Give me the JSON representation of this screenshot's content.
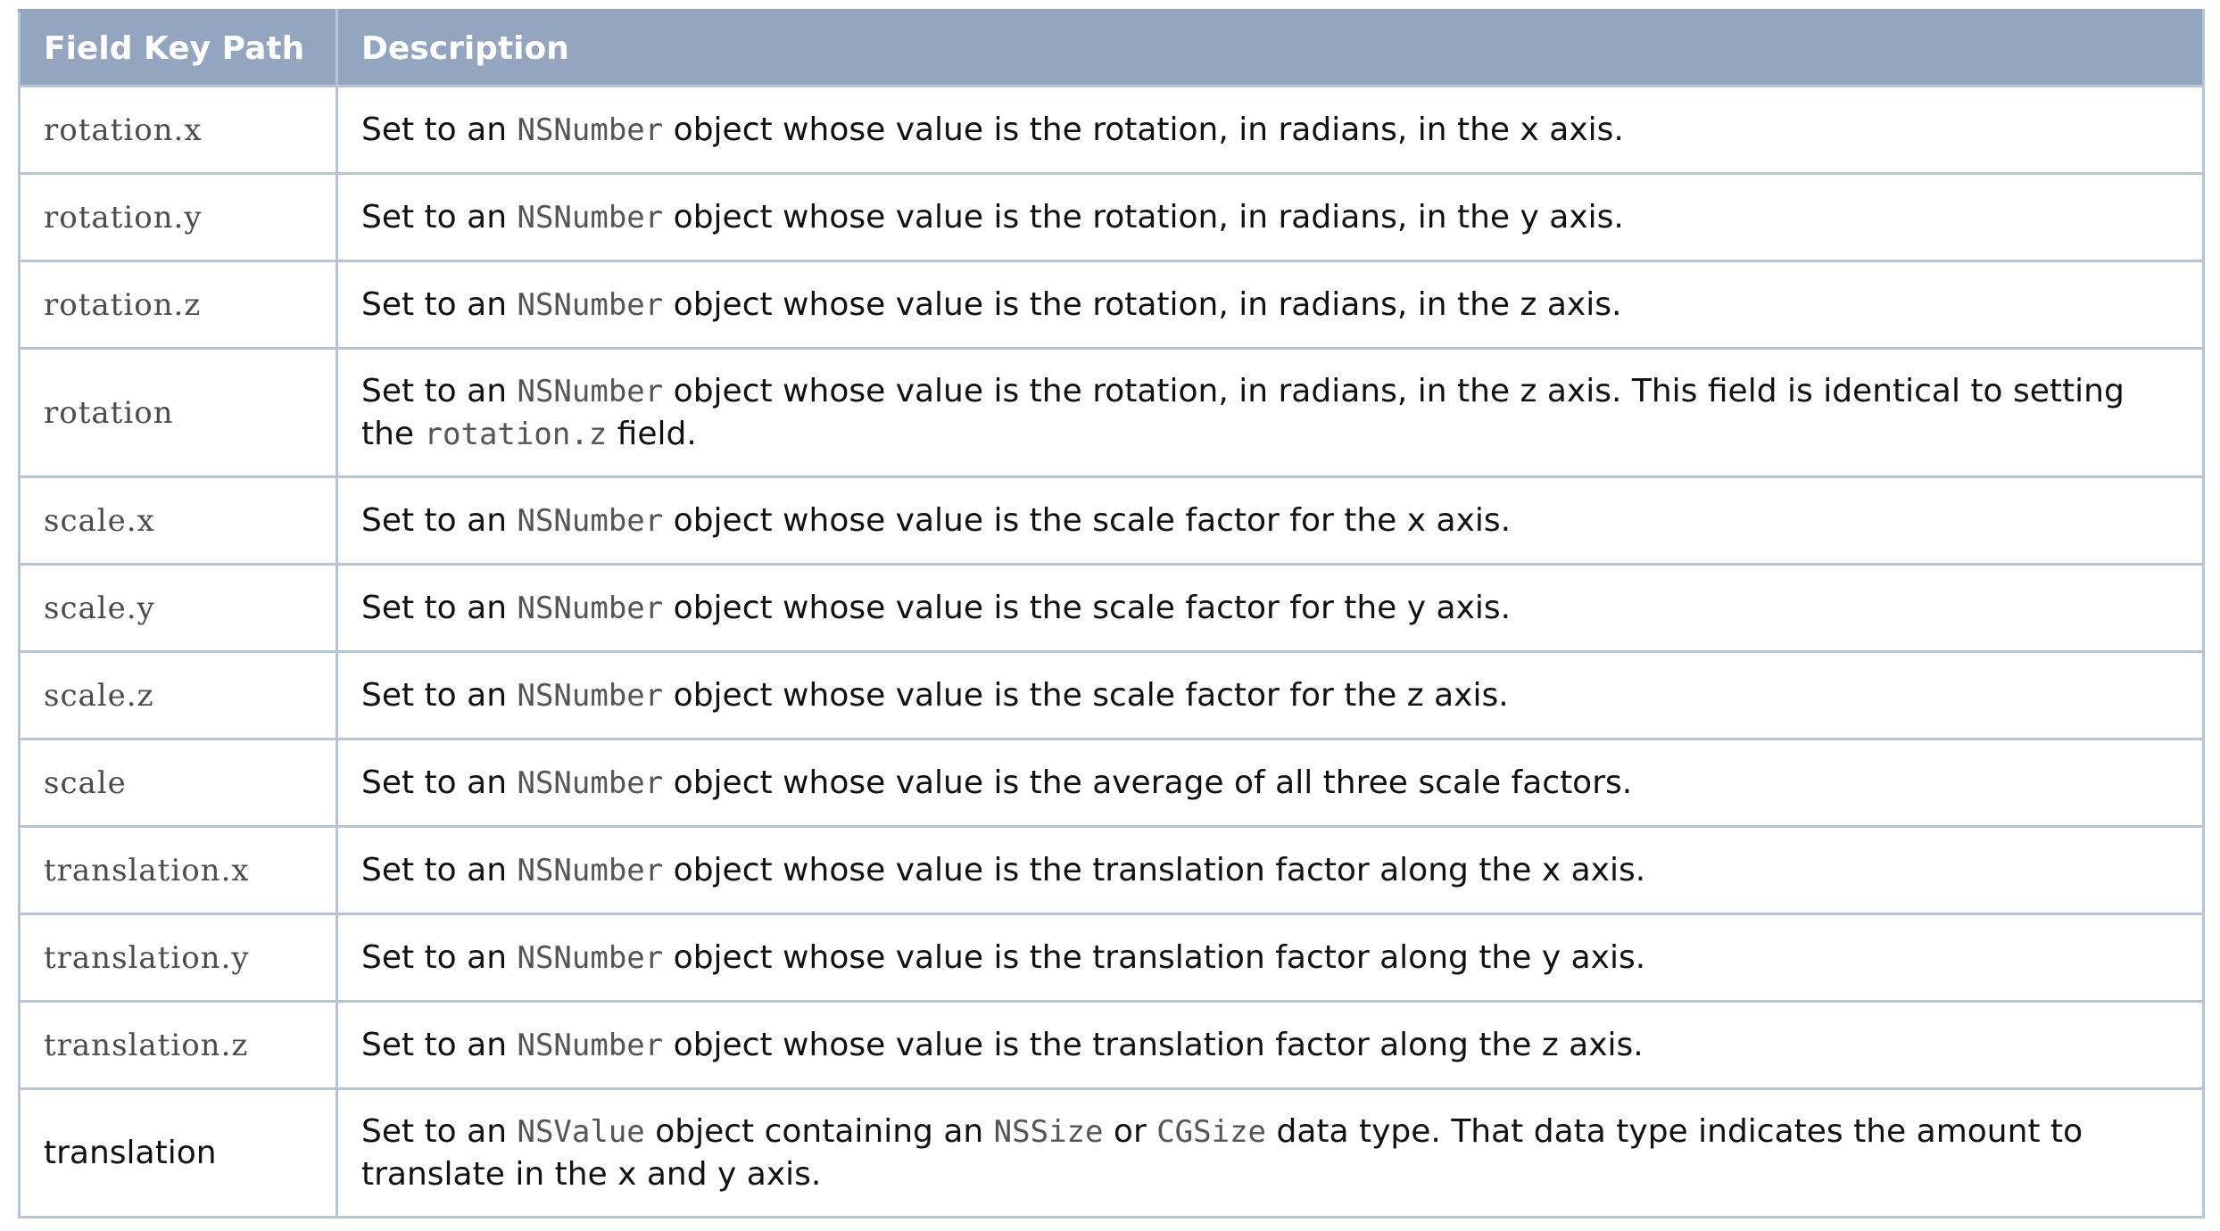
{
  "table": {
    "headers": {
      "key": "Field Key Path",
      "description": "Description"
    },
    "rows": [
      {
        "key": "rotation.x",
        "key_style": "code",
        "parts": [
          {
            "t": "Set to an "
          },
          {
            "t": "NSNumber",
            "code": true
          },
          {
            "t": " object whose value is the rotation, in radians, in the x axis."
          }
        ]
      },
      {
        "key": "rotation.y",
        "key_style": "code",
        "parts": [
          {
            "t": "Set to an "
          },
          {
            "t": "NSNumber",
            "code": true
          },
          {
            "t": " object whose value is the rotation, in radians, in the y axis."
          }
        ]
      },
      {
        "key": "rotation.z",
        "key_style": "code",
        "parts": [
          {
            "t": "Set to an "
          },
          {
            "t": "NSNumber",
            "code": true
          },
          {
            "t": " object whose value is the rotation, in radians, in the z axis."
          }
        ]
      },
      {
        "key": "rotation",
        "key_style": "code",
        "parts": [
          {
            "t": "Set to an "
          },
          {
            "t": "NSNumber",
            "code": true
          },
          {
            "t": " object whose value is the rotation, in radians, in the z axis. This field is identical to setting the "
          },
          {
            "t": "rotation.z",
            "code": true
          },
          {
            "t": " field."
          }
        ]
      },
      {
        "key": "scale.x",
        "key_style": "code",
        "parts": [
          {
            "t": "Set to an "
          },
          {
            "t": "NSNumber",
            "code": true
          },
          {
            "t": " object whose value is the scale factor for the x axis."
          }
        ]
      },
      {
        "key": "scale.y",
        "key_style": "code",
        "parts": [
          {
            "t": "Set to an "
          },
          {
            "t": "NSNumber",
            "code": true
          },
          {
            "t": " object whose value is the scale factor for the y axis."
          }
        ]
      },
      {
        "key": "scale.z",
        "key_style": "code",
        "parts": [
          {
            "t": "Set to an "
          },
          {
            "t": "NSNumber",
            "code": true
          },
          {
            "t": " object whose value is the scale factor for the z axis."
          }
        ]
      },
      {
        "key": "scale",
        "key_style": "code",
        "parts": [
          {
            "t": "Set to an "
          },
          {
            "t": "NSNumber",
            "code": true
          },
          {
            "t": " object whose value is the average of all three scale factors."
          }
        ]
      },
      {
        "key": "translation.x",
        "key_style": "code",
        "parts": [
          {
            "t": "Set to an "
          },
          {
            "t": "NSNumber",
            "code": true
          },
          {
            "t": " object whose value is the translation factor along the x axis."
          }
        ]
      },
      {
        "key": "translation.y",
        "key_style": "code",
        "parts": [
          {
            "t": "Set to an "
          },
          {
            "t": "NSNumber",
            "code": true
          },
          {
            "t": " object whose value is the translation factor along the y axis."
          }
        ]
      },
      {
        "key": "translation.z",
        "key_style": "code",
        "parts": [
          {
            "t": "Set to an "
          },
          {
            "t": "NSNumber",
            "code": true
          },
          {
            "t": " object whose value is the translation factor along the z axis."
          }
        ]
      },
      {
        "key": "translation",
        "key_style": "plain",
        "parts": [
          {
            "t": "Set to an "
          },
          {
            "t": "NSValue",
            "code": true
          },
          {
            "t": " object containing an "
          },
          {
            "t": "NSSize",
            "code": true
          },
          {
            "t": " or "
          },
          {
            "t": "CGSize",
            "code": true
          },
          {
            "t": " data type. That data type indicates the amount to translate in the x and y axis."
          }
        ]
      }
    ]
  },
  "colors": {
    "header_background": "#93a5bf",
    "header_text": "#ffffff",
    "border": "#b7c4d6",
    "code_text": "#555555",
    "body_text": "#111111"
  }
}
